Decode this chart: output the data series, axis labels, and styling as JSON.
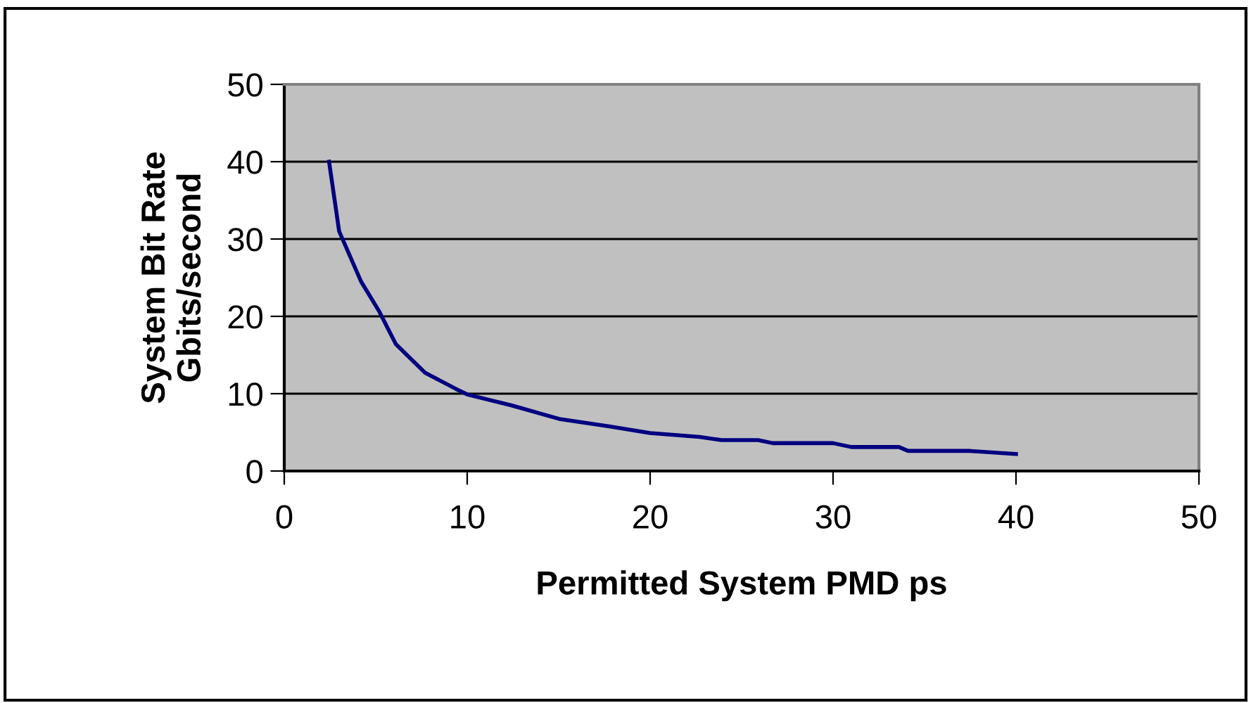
{
  "chart_data": {
    "type": "line",
    "xlabel": "Permitted System PMD ps",
    "ylabel": "System Bit Rate\nGbits/second",
    "x": [
      2.45,
      3.0,
      4.2,
      5.2,
      6.1,
      7.7,
      9.4,
      10.0,
      12.4,
      15.1,
      17.7,
      20,
      22.7,
      23.9,
      25.9,
      26.7,
      30,
      31,
      33.6,
      34.1,
      37.5,
      40
    ],
    "series": [
      {
        "color": "#000080",
        "values": [
          40,
          31,
          24.5,
          20.6,
          16.4,
          12.7,
          10.6,
          9.9,
          8.5,
          6.7,
          5.8,
          4.9,
          4.4,
          4.0,
          4.0,
          3.6,
          3.6,
          3.1,
          3.1,
          2.6,
          2.6,
          2.2
        ]
      }
    ],
    "xlim": [
      0,
      50
    ],
    "xticks": [
      0,
      10,
      20,
      30,
      40,
      50
    ],
    "ylim": [
      0,
      50
    ],
    "yticks": [
      0,
      10,
      20,
      30,
      40,
      50
    ],
    "grid": "y",
    "marker": "none",
    "line_style": "solid"
  }
}
